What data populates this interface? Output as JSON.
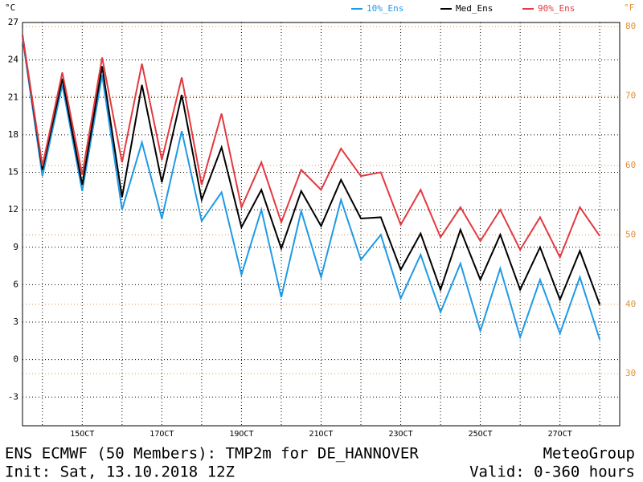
{
  "chart_data": {
    "type": "line",
    "title": "ENS ECMWF (50 Members): TMP2m for DE_HANNOVER",
    "subtitle": "Init: Sat, 13.10.2018 12Z",
    "source": "MeteoGroup",
    "annotation": "Valid: 0-360 hours",
    "y_unit": "°C",
    "y2_unit": "°F",
    "x": [
      0,
      12,
      24,
      36,
      48,
      60,
      72,
      84,
      96,
      108,
      120,
      132,
      144,
      156,
      168,
      180,
      192,
      204,
      216,
      228,
      240,
      252,
      264,
      276,
      288,
      300,
      312,
      324,
      336,
      348
    ],
    "xlim": [
      0,
      360
    ],
    "xticks": [
      {
        "value": 36,
        "label": "15OCT"
      },
      {
        "value": 84,
        "label": "17OCT"
      },
      {
        "value": 132,
        "label": "19OCT"
      },
      {
        "value": 180,
        "label": "21OCT"
      },
      {
        "value": 228,
        "label": "23OCT"
      },
      {
        "value": 276,
        "label": "25OCT"
      },
      {
        "value": 324,
        "label": "27OCT"
      }
    ],
    "xminor": [
      12,
      60,
      108,
      156,
      204,
      252,
      300,
      348
    ],
    "ylim": [
      -5.3,
      27
    ],
    "yticks": [
      -3,
      0,
      3,
      6,
      9,
      12,
      15,
      18,
      21,
      24,
      27
    ],
    "y2lim": [
      22.5,
      80.6
    ],
    "y2ticks": [
      30,
      40,
      50,
      60,
      70,
      80
    ],
    "y2color": "#e0913a",
    "grid": true,
    "legend": "top-right",
    "series": [
      {
        "name": "10%_Ens",
        "color": "#1e9ae6",
        "values": [
          25.8,
          14.7,
          22,
          13.5,
          22.8,
          12,
          17.4,
          11.3,
          18.3,
          11.1,
          13.4,
          6.8,
          12,
          5,
          11.9,
          6.6,
          12.8,
          8,
          10,
          4.9,
          8.4,
          3.8,
          7.7,
          2.3,
          7.3,
          1.8,
          6.4,
          2.1,
          6.6,
          1.6
        ]
      },
      {
        "name": "Med_Ens",
        "color": "#000000",
        "values": [
          26,
          15.2,
          22.5,
          14,
          23.5,
          13,
          22,
          14.2,
          21.2,
          12.8,
          17,
          10.6,
          13.6,
          8.9,
          13.5,
          10.7,
          14.4,
          11.3,
          11.4,
          7.2,
          10.1,
          5.6,
          10.4,
          6.4,
          10,
          5.6,
          9,
          4.8,
          8.7,
          4.4
        ]
      },
      {
        "name": "90%_Ens",
        "color": "#e4393e",
        "values": [
          26,
          15.5,
          23,
          14.8,
          24.2,
          15.8,
          23.7,
          16,
          22.6,
          14,
          19.7,
          12.2,
          15.8,
          11,
          15.2,
          13.6,
          16.9,
          14.7,
          15,
          10.8,
          13.6,
          9.8,
          12.2,
          9.5,
          12,
          8.8,
          11.4,
          8.2,
          12.2,
          9.9
        ]
      }
    ]
  }
}
